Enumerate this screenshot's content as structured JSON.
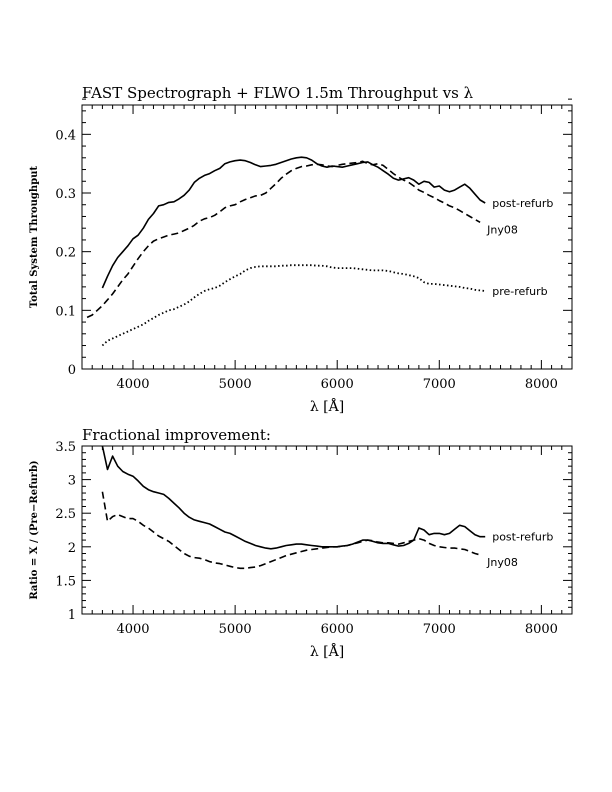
{
  "chart_data": [
    {
      "type": "line",
      "title": "FAST Spectrograph + FLWO 1.5m Throughput vs λ",
      "xlabel": "λ [Å]",
      "ylabel": "Total System Throughput",
      "xlim": [
        3500,
        8300
      ],
      "ylim": [
        0,
        0.45
      ],
      "xticks": [
        "4000",
        "5000",
        "6000",
        "7000",
        "8000"
      ],
      "yticks": [
        "0",
        "0.1",
        "0.2",
        "0.3",
        "0.4"
      ],
      "grid": false,
      "series": [
        {
          "name": "post-refurb",
          "style": "solid",
          "x": [
            3700,
            3750,
            3800,
            3850,
            3900,
            3950,
            4000,
            4050,
            4100,
            4150,
            4200,
            4250,
            4300,
            4350,
            4400,
            4450,
            4500,
            4550,
            4600,
            4650,
            4700,
            4750,
            4800,
            4850,
            4900,
            4950,
            5000,
            5050,
            5100,
            5150,
            5200,
            5250,
            5300,
            5350,
            5400,
            5450,
            5500,
            5550,
            5600,
            5650,
            5700,
            5750,
            5800,
            5850,
            5900,
            5950,
            6000,
            6050,
            6100,
            6150,
            6200,
            6250,
            6300,
            6350,
            6400,
            6450,
            6500,
            6550,
            6600,
            6650,
            6700,
            6750,
            6800,
            6850,
            6900,
            6950,
            7000,
            7050,
            7100,
            7150,
            7200,
            7250,
            7300,
            7350,
            7400,
            7450
          ],
          "values": [
            0.138,
            0.158,
            0.176,
            0.19,
            0.2,
            0.21,
            0.222,
            0.228,
            0.24,
            0.255,
            0.265,
            0.278,
            0.28,
            0.284,
            0.285,
            0.29,
            0.296,
            0.305,
            0.318,
            0.325,
            0.33,
            0.333,
            0.338,
            0.342,
            0.35,
            0.353,
            0.355,
            0.356,
            0.355,
            0.352,
            0.348,
            0.345,
            0.346,
            0.347,
            0.349,
            0.352,
            0.355,
            0.358,
            0.36,
            0.361,
            0.36,
            0.356,
            0.35,
            0.346,
            0.344,
            0.346,
            0.345,
            0.344,
            0.346,
            0.348,
            0.35,
            0.352,
            0.353,
            0.348,
            0.344,
            0.338,
            0.332,
            0.325,
            0.322,
            0.324,
            0.326,
            0.322,
            0.315,
            0.32,
            0.318,
            0.31,
            0.312,
            0.305,
            0.302,
            0.305,
            0.31,
            0.315,
            0.308,
            0.298,
            0.288,
            0.283
          ]
        },
        {
          "name": "Jny08",
          "style": "dashed",
          "x": [
            3550,
            3600,
            3650,
            3700,
            3750,
            3800,
            3850,
            3900,
            3950,
            4000,
            4050,
            4100,
            4150,
            4200,
            4250,
            4300,
            4350,
            4400,
            4450,
            4500,
            4550,
            4600,
            4650,
            4700,
            4750,
            4800,
            4850,
            4900,
            4950,
            5000,
            5050,
            5100,
            5150,
            5200,
            5250,
            5300,
            5350,
            5400,
            5450,
            5500,
            5550,
            5600,
            5650,
            5700,
            5750,
            5800,
            5850,
            5900,
            5950,
            6000,
            6050,
            6100,
            6150,
            6200,
            6250,
            6300,
            6350,
            6400,
            6450,
            6500,
            6550,
            6600,
            6650,
            6700,
            6750,
            6800,
            6850,
            6900,
            6950,
            7000,
            7050,
            7100,
            7150,
            7200,
            7250,
            7300,
            7350,
            7400
          ],
          "values": [
            0.088,
            0.092,
            0.1,
            0.108,
            0.118,
            0.128,
            0.14,
            0.152,
            0.162,
            0.175,
            0.188,
            0.2,
            0.21,
            0.218,
            0.222,
            0.225,
            0.228,
            0.23,
            0.232,
            0.236,
            0.24,
            0.245,
            0.252,
            0.256,
            0.258,
            0.262,
            0.268,
            0.275,
            0.278,
            0.28,
            0.285,
            0.289,
            0.292,
            0.295,
            0.296,
            0.3,
            0.308,
            0.316,
            0.325,
            0.332,
            0.338,
            0.342,
            0.345,
            0.346,
            0.348,
            0.349,
            0.348,
            0.346,
            0.345,
            0.347,
            0.349,
            0.35,
            0.351,
            0.352,
            0.354,
            0.35,
            0.348,
            0.35,
            0.347,
            0.34,
            0.333,
            0.327,
            0.322,
            0.318,
            0.312,
            0.305,
            0.301,
            0.296,
            0.292,
            0.287,
            0.283,
            0.278,
            0.275,
            0.27,
            0.265,
            0.26,
            0.255,
            0.25
          ]
        },
        {
          "name": "pre-refurb",
          "style": "dotted",
          "x": [
            3700,
            3750,
            3800,
            3850,
            3900,
            3950,
            4000,
            4050,
            4100,
            4150,
            4200,
            4250,
            4300,
            4350,
            4400,
            4450,
            4500,
            4550,
            4600,
            4650,
            4700,
            4750,
            4800,
            4850,
            4900,
            4950,
            5000,
            5050,
            5100,
            5150,
            5200,
            5250,
            5300,
            5350,
            5400,
            5450,
            5500,
            5550,
            5600,
            5650,
            5700,
            5750,
            5800,
            5850,
            5900,
            5950,
            6000,
            6050,
            6100,
            6150,
            6200,
            6250,
            6300,
            6350,
            6400,
            6450,
            6500,
            6550,
            6600,
            6650,
            6700,
            6750,
            6800,
            6850,
            6900,
            6950,
            7000,
            7050,
            7100,
            7150,
            7200,
            7250,
            7300,
            7350,
            7400,
            7450
          ],
          "values": [
            0.04,
            0.048,
            0.052,
            0.056,
            0.06,
            0.064,
            0.068,
            0.072,
            0.076,
            0.082,
            0.087,
            0.092,
            0.096,
            0.1,
            0.102,
            0.106,
            0.11,
            0.115,
            0.122,
            0.128,
            0.133,
            0.136,
            0.138,
            0.142,
            0.148,
            0.153,
            0.158,
            0.162,
            0.168,
            0.172,
            0.174,
            0.175,
            0.175,
            0.175,
            0.175,
            0.176,
            0.176,
            0.177,
            0.177,
            0.177,
            0.177,
            0.177,
            0.176,
            0.176,
            0.175,
            0.173,
            0.172,
            0.172,
            0.172,
            0.172,
            0.171,
            0.17,
            0.169,
            0.168,
            0.168,
            0.168,
            0.167,
            0.165,
            0.163,
            0.162,
            0.16,
            0.158,
            0.155,
            0.148,
            0.145,
            0.145,
            0.144,
            0.143,
            0.142,
            0.141,
            0.14,
            0.138,
            0.137,
            0.135,
            0.134,
            0.133
          ]
        }
      ]
    },
    {
      "type": "line",
      "title": "Fractional improvement:",
      "xlabel": "λ [Å]",
      "ylabel": "Ratio = X / (Pre−Refurb)",
      "xlim": [
        3500,
        8300
      ],
      "ylim": [
        1,
        3.5
      ],
      "xticks": [
        "4000",
        "5000",
        "6000",
        "7000",
        "8000"
      ],
      "yticks": [
        "1",
        "1.5",
        "2",
        "2.5",
        "3",
        "3.5"
      ],
      "grid": false,
      "series": [
        {
          "name": "post-refurb",
          "style": "solid",
          "x": [
            3700,
            3750,
            3800,
            3850,
            3900,
            3950,
            4000,
            4050,
            4100,
            4150,
            4200,
            4250,
            4300,
            4350,
            4400,
            4450,
            4500,
            4550,
            4600,
            4650,
            4700,
            4750,
            4800,
            4850,
            4900,
            4950,
            5000,
            5050,
            5100,
            5150,
            5200,
            5250,
            5300,
            5350,
            5400,
            5450,
            5500,
            5550,
            5600,
            5650,
            5700,
            5750,
            5800,
            5850,
            5900,
            5950,
            6000,
            6050,
            6100,
            6150,
            6200,
            6250,
            6300,
            6350,
            6400,
            6450,
            6500,
            6550,
            6600,
            6650,
            6700,
            6750,
            6800,
            6850,
            6900,
            6950,
            7000,
            7050,
            7100,
            7150,
            7200,
            7250,
            7300,
            7350,
            7400,
            7450
          ],
          "values": [
            3.5,
            3.15,
            3.35,
            3.2,
            3.12,
            3.08,
            3.05,
            2.98,
            2.9,
            2.85,
            2.82,
            2.8,
            2.78,
            2.72,
            2.65,
            2.58,
            2.5,
            2.44,
            2.4,
            2.38,
            2.36,
            2.34,
            2.3,
            2.26,
            2.22,
            2.2,
            2.16,
            2.12,
            2.08,
            2.05,
            2.02,
            2.0,
            1.98,
            1.97,
            1.98,
            2.0,
            2.02,
            2.03,
            2.04,
            2.04,
            2.03,
            2.02,
            2.01,
            2.0,
            2.0,
            2.0,
            2.0,
            2.01,
            2.02,
            2.04,
            2.07,
            2.1,
            2.1,
            2.08,
            2.06,
            2.05,
            2.05,
            2.03,
            2.01,
            2.02,
            2.05,
            2.1,
            2.28,
            2.25,
            2.18,
            2.2,
            2.2,
            2.18,
            2.2,
            2.26,
            2.32,
            2.3,
            2.24,
            2.18,
            2.15,
            2.15
          ]
        },
        {
          "name": "Jny08",
          "style": "dashed",
          "x": [
            3700,
            3750,
            3800,
            3850,
            3900,
            3950,
            4000,
            4050,
            4100,
            4150,
            4200,
            4250,
            4300,
            4350,
            4400,
            4450,
            4500,
            4550,
            4600,
            4650,
            4700,
            4750,
            4800,
            4850,
            4900,
            4950,
            5000,
            5050,
            5100,
            5150,
            5200,
            5250,
            5300,
            5350,
            5400,
            5450,
            5500,
            5550,
            5600,
            5650,
            5700,
            5750,
            5800,
            5850,
            5900,
            5950,
            6000,
            6050,
            6100,
            6150,
            6200,
            6250,
            6300,
            6350,
            6400,
            6450,
            6500,
            6550,
            6600,
            6650,
            6700,
            6750,
            6800,
            6850,
            6900,
            6950,
            7000,
            7050,
            7100,
            7150,
            7200,
            7250,
            7300,
            7350,
            7400
          ],
          "values": [
            2.82,
            2.38,
            2.45,
            2.48,
            2.45,
            2.42,
            2.42,
            2.38,
            2.32,
            2.28,
            2.22,
            2.16,
            2.12,
            2.08,
            2.02,
            1.96,
            1.9,
            1.86,
            1.84,
            1.83,
            1.81,
            1.78,
            1.76,
            1.75,
            1.73,
            1.71,
            1.69,
            1.68,
            1.68,
            1.69,
            1.7,
            1.72,
            1.75,
            1.78,
            1.81,
            1.84,
            1.87,
            1.89,
            1.91,
            1.93,
            1.95,
            1.96,
            1.97,
            1.98,
            1.99,
            2.0,
            2.0,
            2.01,
            2.02,
            2.04,
            2.06,
            2.08,
            2.1,
            2.09,
            2.07,
            2.06,
            2.06,
            2.05,
            2.04,
            2.06,
            2.08,
            2.1,
            2.12,
            2.1,
            2.05,
            2.02,
            2.0,
            1.99,
            1.98,
            1.98,
            1.97,
            1.96,
            1.93,
            1.9,
            1.88
          ]
        }
      ]
    }
  ]
}
